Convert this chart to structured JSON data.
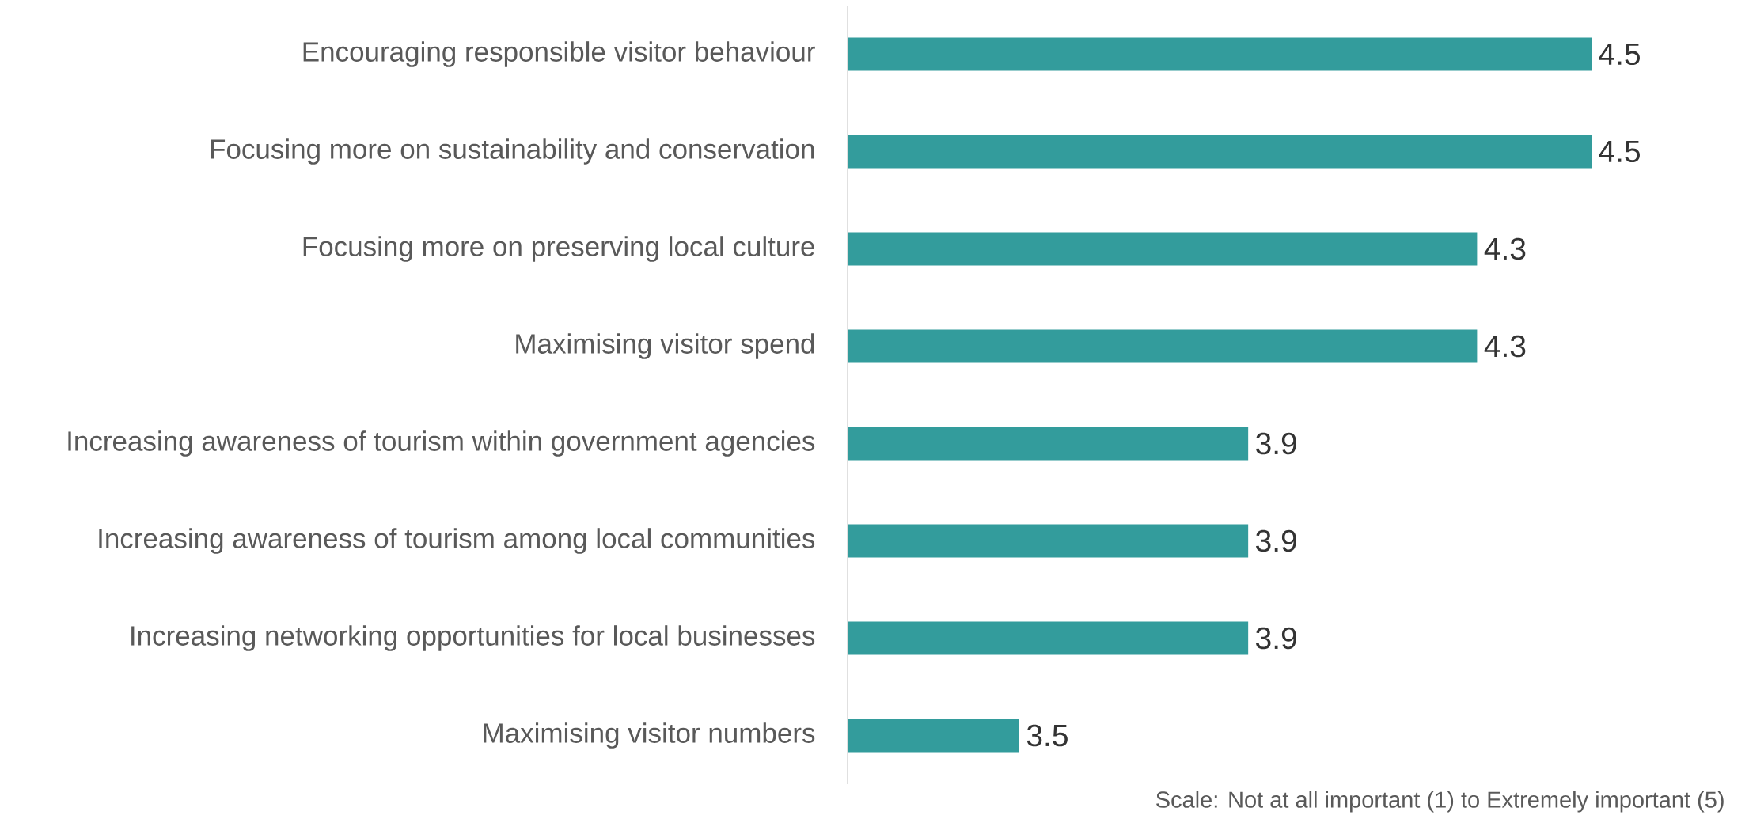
{
  "chart_data": {
    "type": "bar",
    "orientation": "horizontal",
    "categories": [
      "Encouraging responsible visitor behaviour",
      "Focusing more on sustainability and conservation",
      "Focusing more on preserving local culture",
      "Maximising visitor spend",
      "Increasing  awareness of tourism within government agencies",
      "Increasing awareness of tourism among local communities",
      "Increasing networking opportunities for local businesses",
      "Maximising visitor numbers"
    ],
    "values": [
      4.5,
      4.5,
      4.3,
      4.3,
      3.9,
      3.9,
      3.9,
      3.5
    ],
    "color": "#339c9c",
    "xlim": [
      3.2,
      4.5
    ],
    "data_labels": true,
    "annotations": [
      "Scale: Not at all important (1) to Extremely important (5)"
    ]
  }
}
